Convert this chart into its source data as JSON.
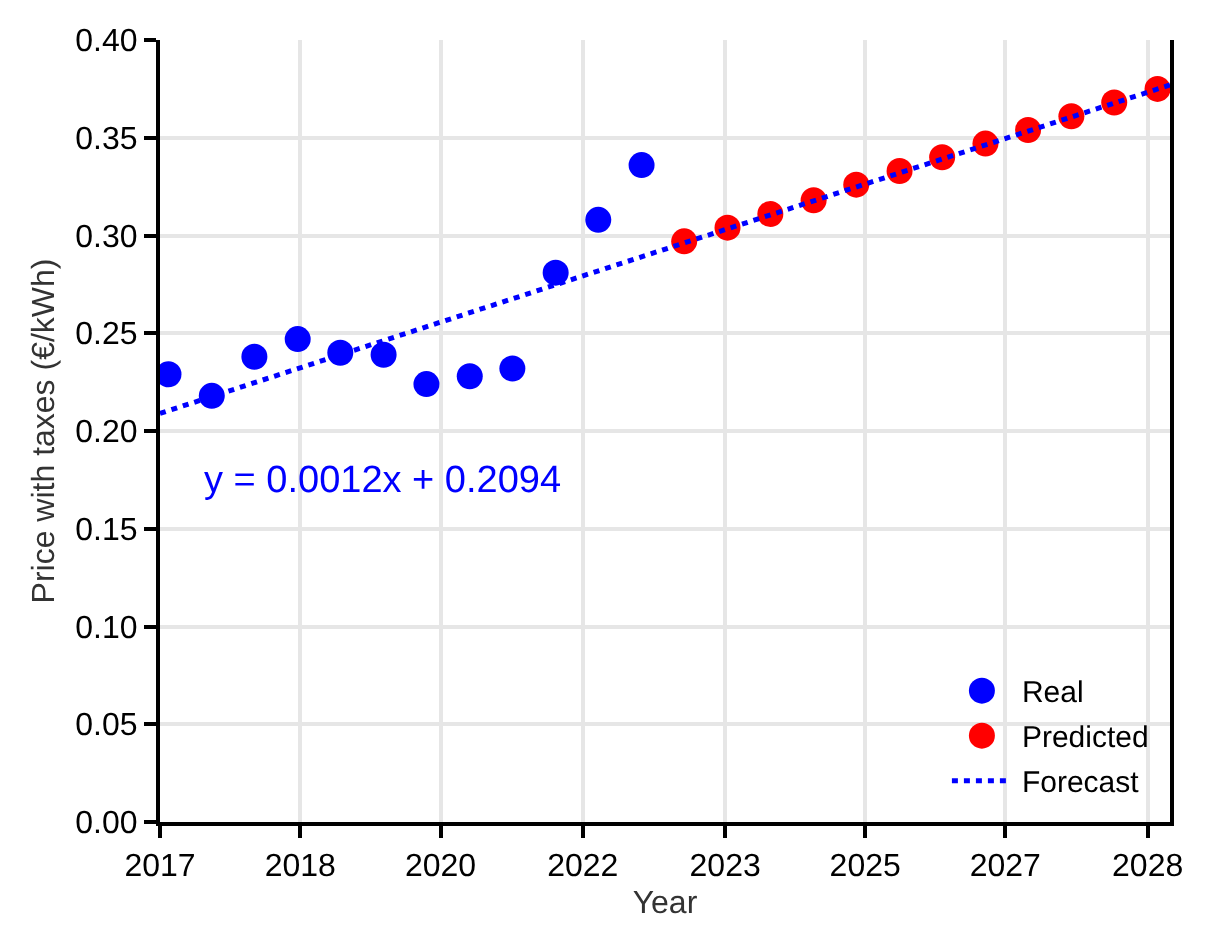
{
  "chart_data": {
    "type": "scatter",
    "xlabel": "Year",
    "ylabel": "Price with taxes (€/kWh)",
    "xlim": [
      "2017-03-26",
      "2028-12-24"
    ],
    "xticks": [
      {
        "value": "2017-03-26",
        "label": "2017"
      },
      {
        "value": "2018-11-12",
        "label": "2018"
      },
      {
        "value": "2020-06-30",
        "label": "2020"
      },
      {
        "value": "2022-02-24",
        "label": "2022"
      },
      {
        "value": "2023-10-22",
        "label": "2023"
      },
      {
        "value": "2025-06-08",
        "label": "2025"
      },
      {
        "value": "2027-01-24",
        "label": "2027"
      },
      {
        "value": "2028-09-20",
        "label": "2028"
      }
    ],
    "ylim": [
      0,
      0.4
    ],
    "yticks": [
      {
        "value": 0,
        "label": "0.00"
      },
      {
        "value": 0.05,
        "label": "0.05"
      },
      {
        "value": 0.1,
        "label": "0.10"
      },
      {
        "value": 0.15,
        "label": "0.15"
      },
      {
        "value": 0.2,
        "label": "0.20"
      },
      {
        "value": 0.25,
        "label": "0.25"
      },
      {
        "value": 0.3,
        "label": "0.30"
      },
      {
        "value": 0.35,
        "label": "0.35"
      },
      {
        "value": 0.4,
        "label": "0.40"
      }
    ],
    "grid": true,
    "legend": "bottom right",
    "marker": "circle",
    "series": [
      {
        "name": "Real",
        "color": "#0000ff",
        "x": [
          "2017-05",
          "2017-11",
          "2018-05",
          "2018-11",
          "2019-05",
          "2019-11",
          "2020-05",
          "2020-11",
          "2021-05",
          "2021-11",
          "2022-05",
          "2022-11"
        ],
        "values": [
          0.229,
          0.218,
          0.238,
          0.247,
          0.24,
          0.239,
          0.224,
          0.228,
          0.232,
          0.281,
          0.308,
          0.336
        ]
      },
      {
        "name": "Predicted",
        "color": "#ff0000",
        "x": [
          "2023-05",
          "2023-11",
          "2024-05",
          "2024-11",
          "2025-05",
          "2025-11",
          "2026-05",
          "2026-11",
          "2027-05",
          "2027-11",
          "2028-05",
          "2028-11"
        ],
        "values": [
          0.297,
          0.304,
          0.311,
          0.318,
          0.326,
          0.333,
          0.34,
          0.347,
          0.354,
          0.361,
          0.368,
          0.375
        ]
      },
      {
        "name": "Forecast",
        "type": "line",
        "line_style": "dotted",
        "marker": "none",
        "color": "#0000ff",
        "x": [
          "2017-03-26",
          "2028-12-24"
        ],
        "values": [
          0.209,
          0.377
        ]
      }
    ],
    "annotations": [
      "y = 0.0012x + 0.2094"
    ]
  }
}
